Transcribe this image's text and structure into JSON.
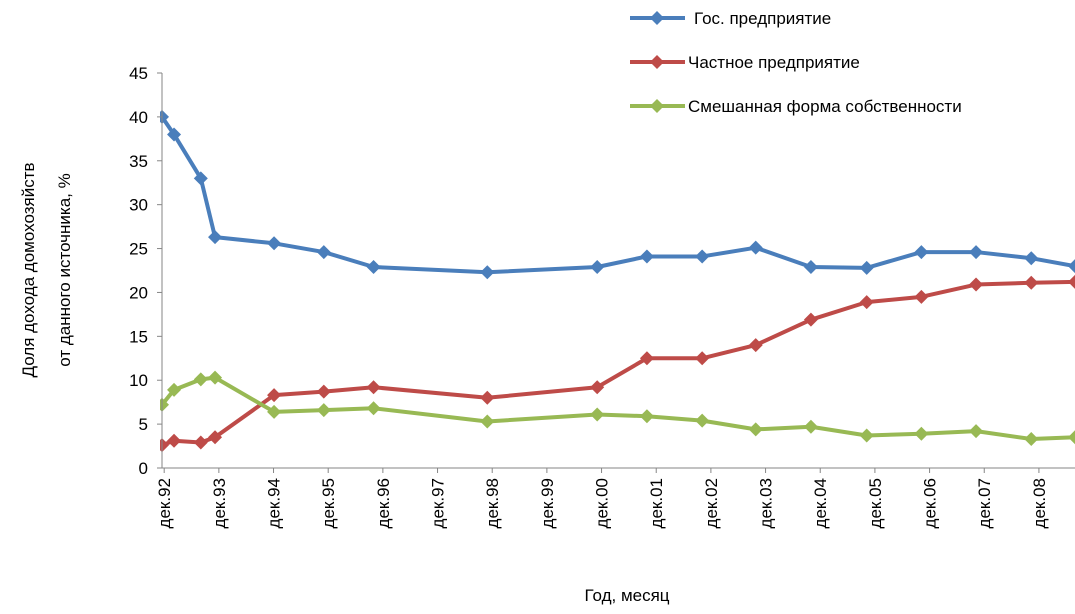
{
  "chart_data": {
    "type": "line",
    "ylabel": [
      "Доля дохода домохозяйств",
      "от данного источника, %"
    ],
    "xlabel": "Год, месяц",
    "x": [
      1992.88,
      1993.1,
      1993.59,
      1993.85,
      1994.93,
      1995.84,
      1996.75,
      1998.83,
      2000.84,
      2001.75,
      2002.76,
      2003.74,
      2004.75,
      2005.77,
      2006.77,
      2007.77,
      2008.78,
      2009.58
    ],
    "series": [
      {
        "name": "Гос. предприятие",
        "color": "#4a7ebb",
        "values": [
          40,
          38,
          33,
          26.3,
          25.6,
          24.6,
          22.9,
          22.3,
          22.9,
          24.1,
          24.1,
          25.1,
          22.9,
          22.8,
          24.6,
          24.6,
          23.9,
          23.0
        ]
      },
      {
        "name": "Частное предприятие",
        "color": "#be4b48",
        "values": [
          2.6,
          3.1,
          2.9,
          3.5,
          8.3,
          8.7,
          9.2,
          8.0,
          9.2,
          12.5,
          12.5,
          14.0,
          16.9,
          18.9,
          19.5,
          20.9,
          21.1,
          21.2
        ]
      },
      {
        "name": "Смешанная форма собственности",
        "color": "#98b954",
        "values": [
          7.2,
          8.9,
          10.1,
          10.3,
          6.4,
          6.6,
          6.8,
          5.3,
          6.1,
          5.9,
          5.4,
          4.4,
          4.7,
          3.7,
          3.9,
          4.2,
          3.3,
          3.5
        ]
      }
    ],
    "xlim": [
      1992.88,
      2009.58
    ],
    "xticks": [
      {
        "value": 1992.92,
        "label": "дек.92"
      },
      {
        "value": 1993.92,
        "label": "дек.93"
      },
      {
        "value": 1994.92,
        "label": "дек.94"
      },
      {
        "value": 1995.92,
        "label": "дек.95"
      },
      {
        "value": 1996.92,
        "label": "дек.96"
      },
      {
        "value": 1997.92,
        "label": "дек.97"
      },
      {
        "value": 1998.92,
        "label": "дек.98"
      },
      {
        "value": 1999.92,
        "label": "дек.99"
      },
      {
        "value": 2000.92,
        "label": "дек.00"
      },
      {
        "value": 2001.92,
        "label": "дек.01"
      },
      {
        "value": 2002.92,
        "label": "дек.02"
      },
      {
        "value": 2003.92,
        "label": "дек.03"
      },
      {
        "value": 2004.92,
        "label": "дек.04"
      },
      {
        "value": 2005.92,
        "label": "дек.05"
      },
      {
        "value": 2006.92,
        "label": "дек.06"
      },
      {
        "value": 2007.92,
        "label": "дек.07"
      },
      {
        "value": 2008.92,
        "label": "дек.08"
      }
    ],
    "ylim": [
      0,
      45
    ],
    "yticks": [
      0,
      5,
      10,
      15,
      20,
      25,
      30,
      35,
      40,
      45
    ],
    "grid": false,
    "legend": "top-right"
  }
}
